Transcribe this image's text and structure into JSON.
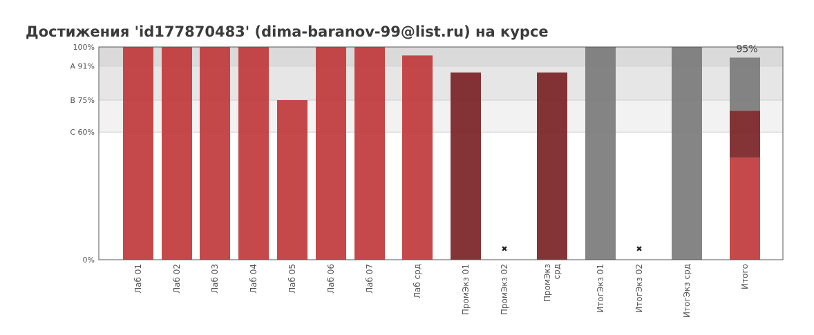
{
  "title": "Достижения 'id177870483' (dima-baranov-99@list.ru) на курсе",
  "chart_data": {
    "type": "bar",
    "ylim": [
      0,
      100
    ],
    "y_ticks": [
      {
        "value": 0,
        "label": "0%"
      },
      {
        "value": 60,
        "label": "C 60%"
      },
      {
        "value": 75,
        "label": "B 75%"
      },
      {
        "value": 91,
        "label": "A 91%"
      },
      {
        "value": 100,
        "label": "100%"
      }
    ],
    "bands": [
      {
        "from": 60,
        "to": 75,
        "color": "#f2f2f2"
      },
      {
        "from": 75,
        "to": 91,
        "color": "#e6e6e6"
      },
      {
        "from": 91,
        "to": 100,
        "color": "#dadada"
      }
    ],
    "categories": [
      {
        "label": "Лаб 01",
        "segments": [
          {
            "value": 100,
            "color": "#c0393b"
          }
        ]
      },
      {
        "label": "Лаб 02",
        "segments": [
          {
            "value": 100,
            "color": "#c0393b"
          }
        ]
      },
      {
        "label": "Лаб 03",
        "segments": [
          {
            "value": 100,
            "color": "#c0393b"
          }
        ]
      },
      {
        "label": "Лаб 04",
        "segments": [
          {
            "value": 100,
            "color": "#c0393b"
          }
        ]
      },
      {
        "label": "Лаб 05",
        "segments": [
          {
            "value": 75,
            "color": "#c0393b"
          }
        ]
      },
      {
        "label": "Лаб 06",
        "segments": [
          {
            "value": 100,
            "color": "#c0393b"
          }
        ]
      },
      {
        "label": "Лаб 07",
        "segments": [
          {
            "value": 100,
            "color": "#c0393b"
          }
        ]
      },
      {
        "label": "Лаб срд",
        "segments": [
          {
            "value": 96,
            "color": "#c0393b"
          }
        ]
      },
      {
        "label": "ПромЭкз 01",
        "segments": [
          {
            "value": 88,
            "color": "#7a2325"
          }
        ]
      },
      {
        "label": "ПромЭкз 02",
        "segments": [],
        "missing": true
      },
      {
        "label": [
          "ПромЭкз",
          "срд"
        ],
        "segments": [
          {
            "value": 88,
            "color": "#7a2325"
          }
        ]
      },
      {
        "label": "ИтогЭкз 01",
        "segments": [
          {
            "value": 100,
            "color": "#7b7b7b"
          }
        ]
      },
      {
        "label": "ИтогЭкз 02",
        "segments": [],
        "missing": true
      },
      {
        "label": "ИтогЭкз срд",
        "segments": [
          {
            "value": 100,
            "color": "#7b7b7b"
          }
        ]
      },
      {
        "label": "Итого",
        "segments": [
          {
            "value": 48,
            "color": "#c0393b"
          },
          {
            "value": 22,
            "color": "#7a2325"
          },
          {
            "value": 25,
            "color": "#7b7b7b"
          }
        ],
        "data_label": "95%"
      }
    ]
  }
}
